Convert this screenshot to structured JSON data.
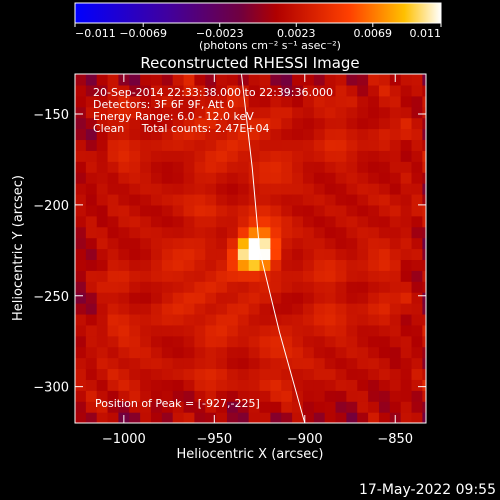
{
  "chart_data": {
    "type": "heatmap",
    "title": "Reconstructed RHESSI Image",
    "xlabel": "Heliocentric X (arcsec)",
    "ylabel": "Heliocentric Y (arcsec)",
    "xlim": [
      -1027,
      -833
    ],
    "ylim": [
      -320,
      -128
    ],
    "xticks": [
      -1000,
      -950,
      -900,
      -850
    ],
    "yticks": [
      -150,
      -200,
      -250,
      -300
    ],
    "colorbar": {
      "range": [
        -0.011,
        0.011
      ],
      "ticks": [
        -0.011,
        -0.0069,
        -0.0023,
        0.0023,
        0.0069,
        0.011
      ],
      "tick_labels": [
        "−0.011",
        "−0.0069",
        "−0.0023",
        "0.0023",
        "0.0069",
        "0.011"
      ],
      "unit_label": "(photons cm⁻² s⁻¹ asec⁻²)",
      "colormap": "heat"
    },
    "annotations": [
      "20-Sep-2014 22:33:38.000 to 22:39:36.000",
      "Detectors: 3F 6F 9F, Att 0",
      "Energy Range: 6.0 - 12.0 keV",
      "Clean     Total counts: 2.47E+04"
    ],
    "peak_label": "Position of Peak = [-927,-225]",
    "peak": {
      "x": -927,
      "y": -225
    },
    "limb_curve": [
      [
        -935,
        -128
      ],
      [
        -929,
        -180
      ],
      [
        -925,
        -225
      ],
      [
        -914,
        -270
      ],
      [
        -900,
        -320
      ]
    ],
    "background_level": 0.0035
  },
  "footer": {
    "timestamp": "17-May-2022 09:55"
  }
}
